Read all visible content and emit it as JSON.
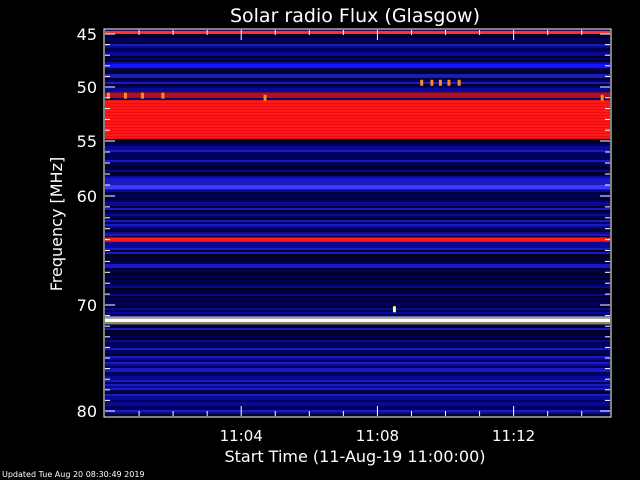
{
  "chart_data": {
    "type": "heatmap",
    "title": "Solar radio Flux (Glasgow)",
    "xlabel": "Start Time (11-Aug-19 11:00:00)",
    "ylabel": "Frequency [MHz]",
    "x_start": "11:00:00",
    "x_end": "11:14:50",
    "x_unit": "minutes after 11:00",
    "x_ticks": [
      {
        "label": "11:04",
        "value": 4
      },
      {
        "label": "11:08",
        "value": 8
      },
      {
        "label": "11:12",
        "value": 12
      }
    ],
    "y_range": [
      44.5,
      80.5
    ],
    "y_ticks": [
      45,
      50,
      55,
      60,
      70,
      80
    ],
    "y_scale": "nonlinear (reciprocal-like)",
    "colormap": [
      "#000020",
      "#00006e",
      "#1414ff",
      "#ff1818",
      "#ffff80",
      "#ffffff"
    ],
    "background_level": "blue",
    "bands": [
      {
        "freq_low": 44.7,
        "freq_high": 45.0,
        "level": "bright-red"
      },
      {
        "freq_low": 47.8,
        "freq_high": 48.2,
        "level": "blue"
      },
      {
        "freq_low": 50.5,
        "freq_high": 51.0,
        "level": "dark-red"
      },
      {
        "freq_low": 51.2,
        "freq_high": 54.8,
        "level": "red"
      },
      {
        "freq_low": 59.0,
        "freq_high": 59.4,
        "level": "bright-blue"
      },
      {
        "freq_low": 63.8,
        "freq_high": 64.2,
        "level": "red"
      },
      {
        "freq_low": 71.3,
        "freq_high": 71.6,
        "level": "white"
      }
    ],
    "bursts": [
      {
        "time_min": 0.1,
        "freq": 50.8,
        "level": "orange"
      },
      {
        "time_min": 0.6,
        "freq": 50.8,
        "level": "orange"
      },
      {
        "time_min": 1.1,
        "freq": 50.8,
        "level": "orange"
      },
      {
        "time_min": 1.7,
        "freq": 50.8,
        "level": "orange"
      },
      {
        "time_min": 4.7,
        "freq": 51.0,
        "level": "orange"
      },
      {
        "time_min": 8.5,
        "freq": 70.4,
        "level": "yellow"
      },
      {
        "time_min": 9.3,
        "freq": 49.6,
        "level": "orange"
      },
      {
        "time_min": 9.6,
        "freq": 49.6,
        "level": "orange"
      },
      {
        "time_min": 9.85,
        "freq": 49.6,
        "level": "orange"
      },
      {
        "time_min": 10.1,
        "freq": 49.6,
        "level": "orange"
      },
      {
        "time_min": 10.4,
        "freq": 49.6,
        "level": "orange"
      },
      {
        "time_min": 14.6,
        "freq": 51.0,
        "level": "orange"
      }
    ]
  },
  "footer": "Updated Tue Aug 20 08:30:49 2019"
}
